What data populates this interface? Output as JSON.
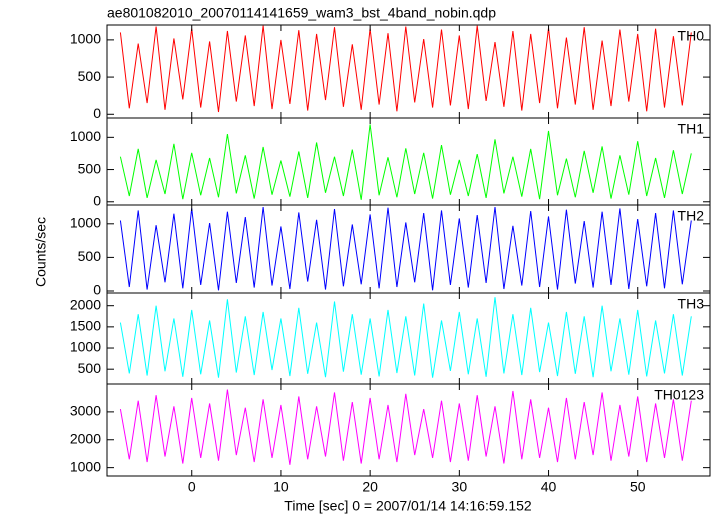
{
  "title": "ae801082010_20070114141659_wam3_bst_4band_nobin.qdp",
  "xlabel": "Time [sec] 0 = 2007/01/14 14:16:59.152",
  "ylabel": "Counts/sec",
  "chart_data": [
    {
      "type": "line",
      "x": [
        -8,
        -7,
        -6,
        -5,
        -4,
        -3,
        -2,
        -1,
        0,
        1,
        2,
        3,
        4,
        5,
        6,
        7,
        8,
        9,
        10,
        11,
        12,
        13,
        14,
        15,
        16,
        17,
        18,
        19,
        20,
        21,
        22,
        23,
        24,
        25,
        26,
        27,
        28,
        29,
        30,
        31,
        32,
        33,
        34,
        35,
        36,
        37,
        38,
        39,
        40,
        41,
        42,
        43,
        44,
        45,
        46,
        47,
        48,
        49,
        50,
        51,
        52,
        53,
        54,
        55,
        56
      ],
      "xlim": [
        -9.5,
        58.1
      ],
      "xticks": [
        0,
        10,
        20,
        30,
        40,
        50
      ],
      "ylim": [
        -50,
        1200
      ],
      "yticks": [
        0,
        500,
        1000
      ],
      "series": [
        {
          "name": "TH0",
          "color": "#ff0000",
          "values": [
            1100,
            80,
            950,
            150,
            1180,
            60,
            1020,
            200,
            1150,
            90,
            980,
            30,
            1120,
            170,
            1060,
            110,
            1190,
            70,
            1000,
            140,
            1130,
            50,
            1080,
            190,
            1170,
            100,
            940,
            60,
            1150,
            130,
            1090,
            40,
            1180,
            160,
            1010,
            90,
            1140,
            120,
            1060,
            70,
            1190,
            180,
            970,
            100,
            1120,
            50,
            1080,
            150,
            1160,
            80,
            1030,
            130,
            1170,
            60,
            990,
            110,
            1140,
            170,
            1080,
            40,
            1150,
            90,
            1050,
            120,
            1100
          ]
        }
      ]
    },
    {
      "type": "line",
      "x": [
        -8,
        -7,
        -6,
        -5,
        -4,
        -3,
        -2,
        -1,
        0,
        1,
        2,
        3,
        4,
        5,
        6,
        7,
        8,
        9,
        10,
        11,
        12,
        13,
        14,
        15,
        16,
        17,
        18,
        19,
        20,
        21,
        22,
        23,
        24,
        25,
        26,
        27,
        28,
        29,
        30,
        31,
        32,
        33,
        34,
        35,
        36,
        37,
        38,
        39,
        40,
        41,
        42,
        43,
        44,
        45,
        46,
        47,
        48,
        49,
        50,
        51,
        52,
        53,
        54,
        55,
        56
      ],
      "xlim": [
        -9.5,
        58.1
      ],
      "xticks": [
        0,
        10,
        20,
        30,
        40,
        50
      ],
      "ylim": [
        -50,
        1300
      ],
      "yticks": [
        0,
        500,
        1000
      ],
      "series": [
        {
          "name": "TH1",
          "color": "#00ff00",
          "values": [
            700,
            90,
            820,
            60,
            650,
            120,
            900,
            40,
            760,
            100,
            680,
            70,
            1050,
            130,
            720,
            50,
            850,
            110,
            640,
            80,
            780,
            60,
            920,
            140,
            700,
            90,
            810,
            30,
            1200,
            100,
            690,
            70,
            830,
            120,
            760,
            50,
            880,
            110,
            650,
            90,
            740,
            60,
            970,
            130,
            700,
            80,
            820,
            40,
            1100,
            100,
            670,
            70,
            790,
            140,
            860,
            50,
            720,
            110,
            940,
            90,
            680,
            60,
            800,
            120,
            750
          ]
        }
      ]
    },
    {
      "type": "line",
      "x": [
        -8,
        -7,
        -6,
        -5,
        -4,
        -3,
        -2,
        -1,
        0,
        1,
        2,
        3,
        4,
        5,
        6,
        7,
        8,
        9,
        10,
        11,
        12,
        13,
        14,
        15,
        16,
        17,
        18,
        19,
        20,
        21,
        22,
        23,
        24,
        25,
        26,
        27,
        28,
        29,
        30,
        31,
        32,
        33,
        34,
        35,
        36,
        37,
        38,
        39,
        40,
        41,
        42,
        43,
        44,
        45,
        46,
        47,
        48,
        49,
        50,
        51,
        52,
        53,
        54,
        55,
        56
      ],
      "xlim": [
        -9.5,
        58.1
      ],
      "xticks": [
        0,
        10,
        20,
        30,
        40,
        50
      ],
      "ylim": [
        -30,
        1280
      ],
      "yticks": [
        0,
        500,
        1000
      ],
      "series": [
        {
          "name": "TH2",
          "color": "#0000ff",
          "values": [
            1050,
            60,
            1200,
            20,
            980,
            130,
            1150,
            40,
            1230,
            90,
            1010,
            10,
            1180,
            120,
            1100,
            50,
            1250,
            80,
            960,
            30,
            1170,
            140,
            1060,
            20,
            1220,
            70,
            990,
            100,
            1140,
            40,
            1240,
            60,
            1020,
            130,
            1160,
            10,
            1200,
            90,
            1080,
            50,
            1130,
            120,
            1250,
            30,
            970,
            80,
            1190,
            60,
            1110,
            20,
            1210,
            110,
            1040,
            50,
            1180,
            90,
            1230,
            30,
            1070,
            70,
            1160,
            40,
            1200,
            100,
            1050
          ]
        }
      ]
    },
    {
      "type": "line",
      "x": [
        -8,
        -7,
        -6,
        -5,
        -4,
        -3,
        -2,
        -1,
        0,
        1,
        2,
        3,
        4,
        5,
        6,
        7,
        8,
        9,
        10,
        11,
        12,
        13,
        14,
        15,
        16,
        17,
        18,
        19,
        20,
        21,
        22,
        23,
        24,
        25,
        26,
        27,
        28,
        29,
        30,
        31,
        32,
        33,
        34,
        35,
        36,
        37,
        38,
        39,
        40,
        41,
        42,
        43,
        44,
        45,
        46,
        47,
        48,
        49,
        50,
        51,
        52,
        53,
        54,
        55,
        56
      ],
      "xlim": [
        -9.5,
        58.1
      ],
      "xticks": [
        0,
        10,
        20,
        30,
        40,
        50
      ],
      "ylim": [
        150,
        2300
      ],
      "yticks": [
        500,
        1000,
        1500,
        2000
      ],
      "series": [
        {
          "name": "TH3",
          "color": "#00ffff",
          "values": [
            1600,
            400,
            1800,
            350,
            2000,
            450,
            1700,
            320,
            1900,
            380,
            1650,
            300,
            2150,
            420,
            1750,
            360,
            1850,
            480,
            1700,
            340,
            1950,
            390,
            1600,
            310,
            2100,
            440,
            1800,
            370,
            1700,
            330,
            1900,
            410,
            1750,
            350,
            2050,
            300,
            1650,
            460,
            1850,
            380,
            1700,
            320,
            2200,
            400,
            1800,
            360,
            1950,
            430,
            1600,
            340,
            1850,
            390,
            1750,
            310,
            2000,
            450,
            1700,
            370,
            1900,
            330,
            1650,
            400,
            1800,
            350,
            1750
          ]
        }
      ]
    },
    {
      "type": "line",
      "x": [
        -8,
        -7,
        -6,
        -5,
        -4,
        -3,
        -2,
        -1,
        0,
        1,
        2,
        3,
        4,
        5,
        6,
        7,
        8,
        9,
        10,
        11,
        12,
        13,
        14,
        15,
        16,
        17,
        18,
        19,
        20,
        21,
        22,
        23,
        24,
        25,
        26,
        27,
        28,
        29,
        30,
        31,
        32,
        33,
        34,
        35,
        36,
        37,
        38,
        39,
        40,
        41,
        42,
        43,
        44,
        45,
        46,
        47,
        48,
        49,
        50,
        51,
        52,
        53,
        54,
        55,
        56
      ],
      "xlim": [
        -9.5,
        58.1
      ],
      "xticks": [
        0,
        10,
        20,
        30,
        40,
        50
      ],
      "ylim": [
        700,
        4000
      ],
      "yticks": [
        1000,
        2000,
        3000
      ],
      "series": [
        {
          "name": "TH0123",
          "color": "#ff00ff",
          "values": [
            3100,
            1300,
            3400,
            1200,
            3600,
            1400,
            3200,
            1150,
            3500,
            1350,
            3300,
            1250,
            3800,
            1450,
            3150,
            1200,
            3450,
            1350,
            3250,
            1100,
            3550,
            1300,
            3200,
            1400,
            3700,
            1250,
            3350,
            1150,
            3500,
            1300,
            3250,
            1200,
            3650,
            1450,
            3100,
            1350,
            3400,
            1200,
            3300,
            1250,
            3600,
            1400,
            3200,
            1150,
            3750,
            1300,
            3450,
            1350,
            3150,
            1200,
            3500,
            1300,
            3350,
            1450,
            3700,
            1250,
            3250,
            1400,
            3550,
            1200,
            3300,
            1350,
            3450,
            1250,
            3400
          ]
        }
      ]
    }
  ]
}
